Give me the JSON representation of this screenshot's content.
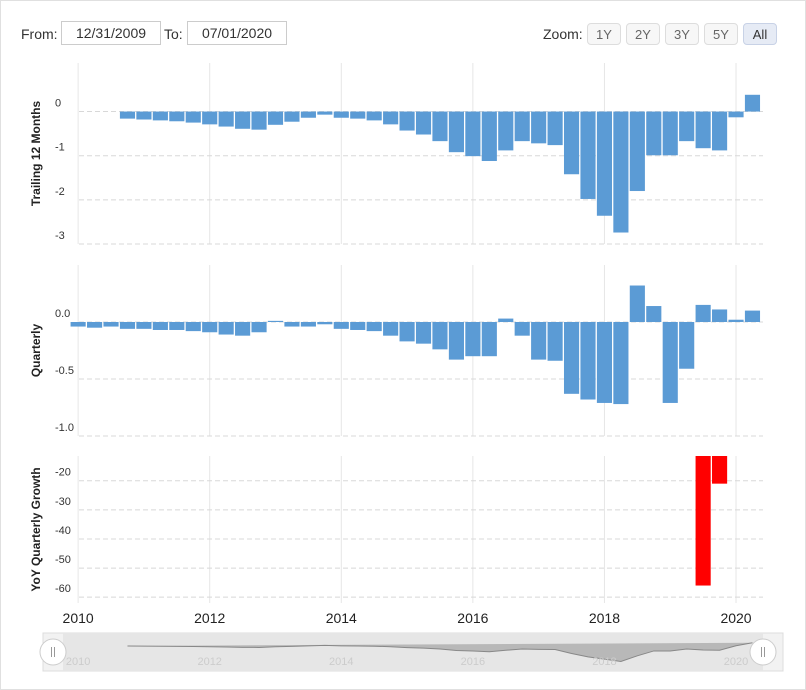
{
  "controls": {
    "from_label": "From:",
    "from": "12/31/2009",
    "to_label": "To:",
    "to": "07/01/2020",
    "zoom_label": "Zoom:",
    "zoom": [
      "1Y",
      "2Y",
      "3Y",
      "5Y",
      "All"
    ],
    "zoom_selected": "All"
  },
  "chart_data": [
    {
      "type": "bar",
      "y_label": "Trailing 12 Months",
      "color": "#5b9bd5",
      "x": [
        2010.0,
        2010.25,
        2010.5,
        2010.75,
        2011.0,
        2011.25,
        2011.5,
        2011.75,
        2012.0,
        2012.25,
        2012.5,
        2012.75,
        2013.0,
        2013.25,
        2013.5,
        2013.75,
        2014.0,
        2014.25,
        2014.5,
        2014.75,
        2015.0,
        2015.25,
        2015.5,
        2015.75,
        2016.0,
        2016.25,
        2016.5,
        2016.75,
        2017.0,
        2017.25,
        2017.5,
        2017.75,
        2018.0,
        2018.25,
        2018.5,
        2018.75,
        2019.0,
        2019.25,
        2019.5,
        2019.75,
        2020.0,
        2020.25
      ],
      "values": [
        null,
        null,
        null,
        -0.16,
        -0.18,
        -0.2,
        -0.22,
        -0.25,
        -0.29,
        -0.34,
        -0.39,
        -0.41,
        -0.3,
        -0.23,
        -0.14,
        -0.07,
        -0.14,
        -0.16,
        -0.2,
        -0.29,
        -0.43,
        -0.52,
        -0.67,
        -0.92,
        -1.01,
        -1.12,
        -0.88,
        -0.67,
        -0.72,
        -0.76,
        -1.42,
        -1.98,
        -2.36,
        -2.74,
        -1.8,
        -0.99,
        -0.99,
        -0.67,
        -0.83,
        -0.88,
        -0.13,
        0.38
      ],
      "xlim": [
        2009.77,
        2020.41
      ],
      "ylim": [
        -3,
        1.1
      ],
      "yticks": [
        0,
        -1,
        -2,
        -3
      ],
      "grid": true
    },
    {
      "type": "bar",
      "y_label": "Quarterly",
      "color": "#5b9bd5",
      "x": [
        2010.0,
        2010.25,
        2010.5,
        2010.75,
        2011.0,
        2011.25,
        2011.5,
        2011.75,
        2012.0,
        2012.25,
        2012.5,
        2012.75,
        2013.0,
        2013.25,
        2013.5,
        2013.75,
        2014.0,
        2014.25,
        2014.5,
        2014.75,
        2015.0,
        2015.25,
        2015.5,
        2015.75,
        2016.0,
        2016.25,
        2016.5,
        2016.75,
        2017.0,
        2017.25,
        2017.5,
        2017.75,
        2018.0,
        2018.25,
        2018.5,
        2018.75,
        2019.0,
        2019.25,
        2019.5,
        2019.75,
        2020.0,
        2020.25
      ],
      "values": [
        -0.04,
        -0.05,
        -0.04,
        -0.06,
        -0.06,
        -0.07,
        -0.07,
        -0.08,
        -0.09,
        -0.11,
        -0.12,
        -0.09,
        0.01,
        -0.04,
        -0.04,
        -0.02,
        -0.06,
        -0.07,
        -0.08,
        -0.12,
        -0.17,
        -0.19,
        -0.24,
        -0.33,
        -0.3,
        -0.3,
        0.03,
        -0.12,
        -0.33,
        -0.34,
        -0.63,
        -0.68,
        -0.71,
        -0.72,
        0.32,
        0.14,
        -0.71,
        -0.41,
        0.15,
        0.11,
        0.02,
        0.1
      ],
      "xlim": [
        2009.77,
        2020.41
      ],
      "ylim": [
        -1.0,
        0.5
      ],
      "yticks": [
        {
          "value": 0,
          "label": "0.0"
        },
        -0.5,
        {
          "value": -1,
          "label": "-1.0"
        }
      ],
      "grid": true
    },
    {
      "type": "bar",
      "y_label": "YoY Quarterly Growth",
      "color": "#ff0000",
      "x": [
        2010.0,
        2010.25,
        2010.5,
        2010.75,
        2011.0,
        2011.25,
        2011.5,
        2011.75,
        2012.0,
        2012.25,
        2012.5,
        2012.75,
        2013.0,
        2013.25,
        2013.5,
        2013.75,
        2014.0,
        2014.25,
        2014.5,
        2014.75,
        2015.0,
        2015.25,
        2015.5,
        2015.75,
        2016.0,
        2016.25,
        2016.5,
        2016.75,
        2017.0,
        2017.25,
        2017.5,
        2017.75,
        2018.0,
        2018.25,
        2018.5,
        2018.75,
        2019.0,
        2019.25,
        2019.5,
        2019.75,
        2020.0,
        2020.25
      ],
      "values": [
        null,
        null,
        null,
        null,
        null,
        null,
        null,
        null,
        null,
        null,
        null,
        null,
        null,
        null,
        null,
        null,
        null,
        null,
        null,
        null,
        null,
        null,
        null,
        null,
        null,
        null,
        null,
        null,
        null,
        null,
        null,
        null,
        null,
        null,
        null,
        null,
        null,
        null,
        -56,
        -21,
        null,
        null
      ],
      "xlim": [
        2009.77,
        2020.41
      ],
      "ylim": [
        -62,
        -11.5
      ],
      "yticks": [
        -20,
        -30,
        -40,
        -50,
        -60
      ],
      "grid": true,
      "xticks": [
        2010,
        2012,
        2014,
        2016,
        2018,
        2020
      ]
    }
  ]
}
